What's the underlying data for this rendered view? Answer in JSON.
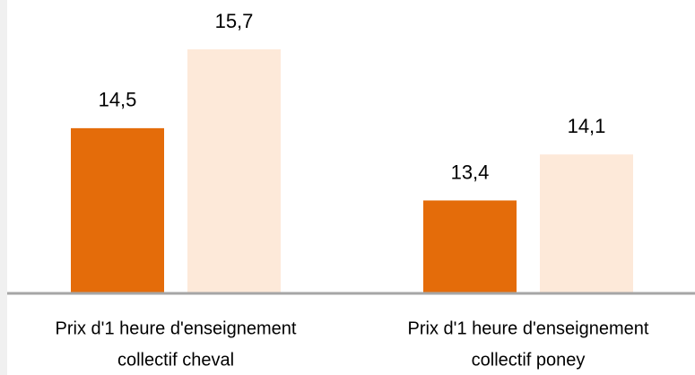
{
  "chart_data": {
    "type": "bar",
    "categories": [
      [
        "Prix d'1 heure d'enseignement",
        "collectif cheval"
      ],
      [
        "Prix d'1 heure d'enseignement",
        "collectif poney"
      ]
    ],
    "series": [
      {
        "color": "#e46c0a",
        "values": [
          14.5,
          13.4
        ],
        "value_labels": [
          "14,5",
          "13,4"
        ]
      },
      {
        "color": "#fde9d9",
        "values": [
          15.7,
          14.1
        ],
        "value_labels": [
          "15,7",
          "14,1"
        ]
      }
    ],
    "ylim": [
      12,
      16
    ]
  }
}
